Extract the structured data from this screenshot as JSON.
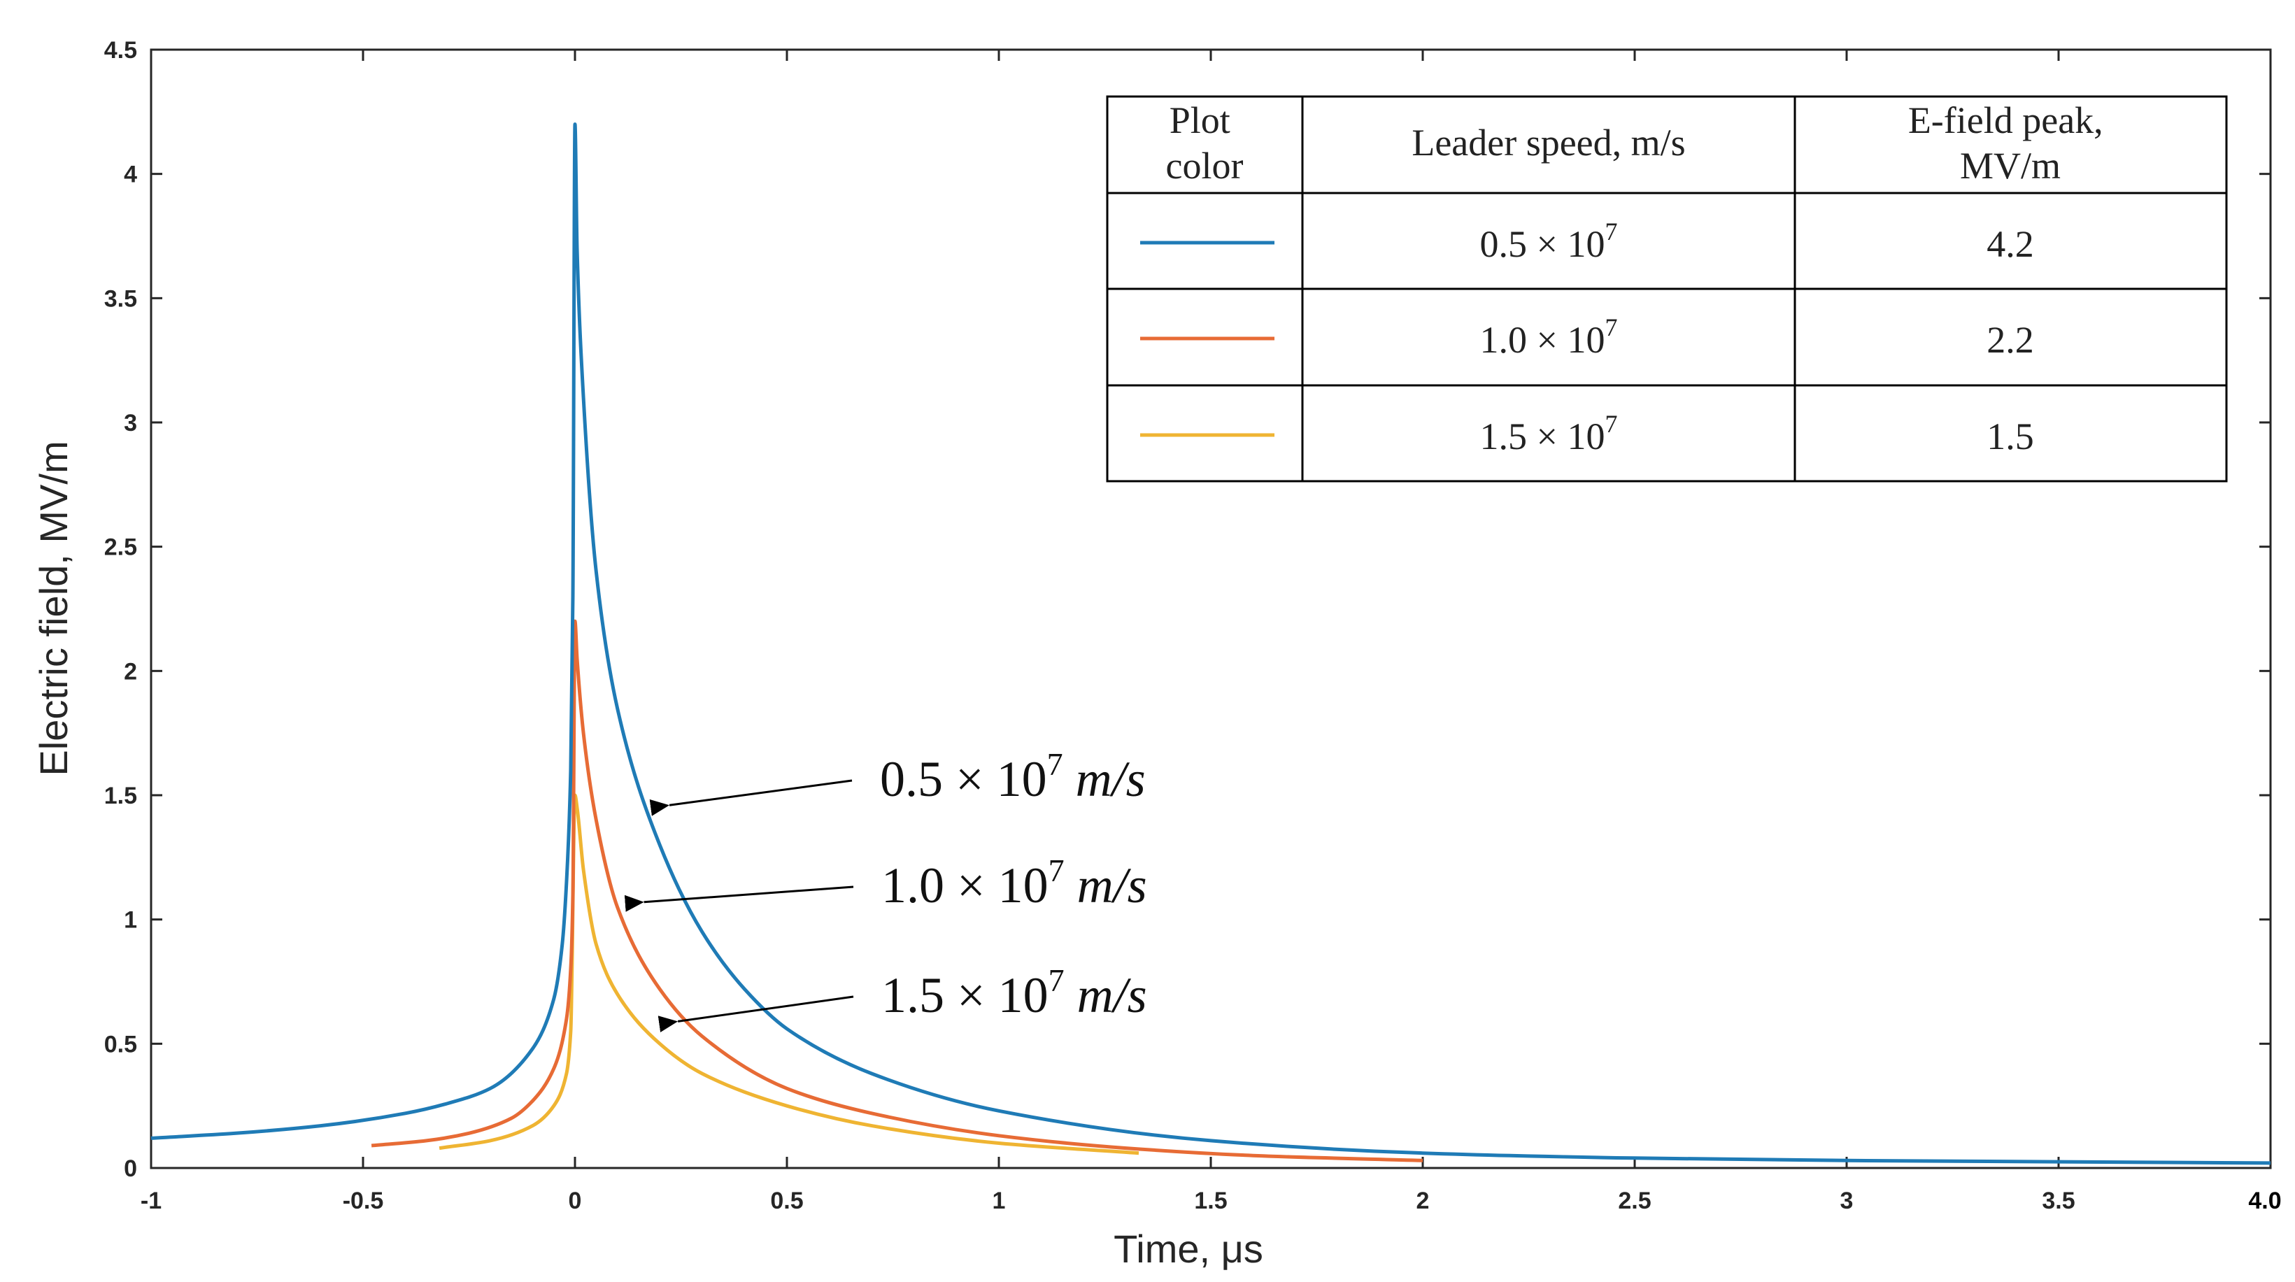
{
  "chart_data": {
    "type": "line",
    "title": "",
    "xlabel": "Time, μs",
    "ylabel": "Electric field, MV/m",
    "xlim": [
      -1,
      4.0
    ],
    "ylim": [
      0,
      4.5
    ],
    "x_ticks": [
      "-1",
      "-0.5",
      "0",
      "0.5",
      "1",
      "1.5",
      "2",
      "2.5",
      "3",
      "3.5",
      "4.0"
    ],
    "y_ticks": [
      "0",
      "0.5",
      "1",
      "1.5",
      "2",
      "2.5",
      "3",
      "3.5",
      "4",
      "4.5"
    ],
    "grid": false,
    "series": [
      {
        "name": "0.5 × 10^7 m/s",
        "color": "#1f7bb6",
        "peak": 4.2,
        "x": [
          -1,
          -0.8,
          -0.6,
          -0.4,
          -0.3,
          -0.2,
          -0.1,
          -0.05,
          -0.03,
          -0.02,
          -0.01,
          -0.005,
          0,
          0.005,
          0.02,
          0.05,
          0.1,
          0.2,
          0.3,
          0.4,
          0.5,
          0.7,
          1.0,
          1.5,
          2.0,
          2.5,
          3.0,
          3.5,
          4.0
        ],
        "y": [
          0.12,
          0.14,
          0.17,
          0.22,
          0.26,
          0.32,
          0.48,
          0.68,
          0.9,
          1.15,
          1.6,
          2.3,
          4.2,
          3.7,
          3.1,
          2.4,
          1.85,
          1.3,
          0.95,
          0.72,
          0.56,
          0.38,
          0.23,
          0.11,
          0.06,
          0.04,
          0.03,
          0.025,
          0.02
        ]
      },
      {
        "name": "1.0 × 10^7 m/s",
        "color": "#e76b35",
        "peak": 2.2,
        "x": [
          -0.48,
          -0.35,
          -0.25,
          -0.15,
          -0.1,
          -0.05,
          -0.02,
          -0.01,
          -0.005,
          0,
          0.005,
          0.02,
          0.05,
          0.1,
          0.2,
          0.3,
          0.5,
          0.7,
          1.0,
          1.3,
          1.6,
          2.0
        ],
        "y": [
          0.09,
          0.11,
          0.14,
          0.2,
          0.27,
          0.4,
          0.6,
          0.8,
          1.1,
          2.2,
          2.05,
          1.75,
          1.4,
          1.05,
          0.72,
          0.53,
          0.32,
          0.22,
          0.13,
          0.08,
          0.05,
          0.03
        ]
      },
      {
        "name": "1.5 × 10^7 m/s",
        "color": "#efb432",
        "peak": 1.5,
        "x": [
          -0.32,
          -0.2,
          -0.1,
          -0.05,
          -0.02,
          -0.01,
          0,
          0.005,
          0.02,
          0.05,
          0.1,
          0.2,
          0.3,
          0.5,
          0.7,
          1.0,
          1.33
        ],
        "y": [
          0.08,
          0.11,
          0.17,
          0.25,
          0.38,
          0.55,
          1.5,
          1.45,
          1.2,
          0.9,
          0.7,
          0.5,
          0.38,
          0.25,
          0.17,
          0.1,
          0.06
        ]
      }
    ],
    "legend_table": {
      "headers": [
        "Plot color",
        "Leader speed, m/s",
        "E-field peak, MV/m"
      ],
      "rows": [
        {
          "mantissa": "0.5",
          "times": "×",
          "base": "10",
          "exponent": "7",
          "peak": "4.2"
        },
        {
          "mantissa": "1.0",
          "times": "×",
          "base": "10",
          "exponent": "7",
          "peak": "2.2"
        },
        {
          "mantissa": "1.5",
          "times": "×",
          "base": "10",
          "exponent": "7",
          "peak": "1.5"
        }
      ]
    },
    "annotations": [
      {
        "mantissa": "0.5",
        "times": "×",
        "base": "10",
        "exponent": "7",
        "unit": "m/s",
        "target_x": 0.17,
        "target_y": 1.46
      },
      {
        "mantissa": "1.0",
        "times": "×",
        "base": "10",
        "exponent": "7",
        "unit": "m/s",
        "target_x": 0.11,
        "target_y": 1.07
      },
      {
        "mantissa": "1.5",
        "times": "×",
        "base": "10",
        "exponent": "7",
        "unit": "m/s",
        "target_x": 0.19,
        "target_y": 0.59
      }
    ]
  }
}
